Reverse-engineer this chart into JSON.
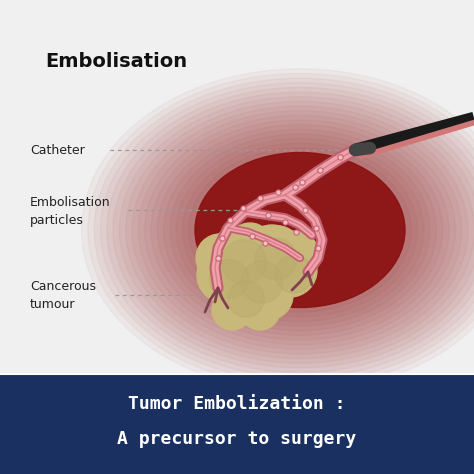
{
  "bg_color": "#f0f0f0",
  "title_text": "Embolisation",
  "title_fontsize": 13,
  "label_catheter": "Catheter",
  "label_embolisation": "Embolisation\nparticles",
  "label_cancerous": "Cancerous\ntumour",
  "dotted_line_color": "#999999",
  "blob_color": "#8B1010",
  "tumor_color": "#c8b87a",
  "tumor_color2": "#b8a86a",
  "vessel_fill": "#f0a0a8",
  "vessel_outline": "#c06070",
  "vessel_dark": "#804050",
  "catheter_color": "#2a2a2a",
  "catheter_pink": "#d07878",
  "banner_color": "#1a3060",
  "banner_text1": "Tumor Embolization :",
  "banner_text2": "A precursor to surgery",
  "banner_text_color": "#ffffff",
  "banner_fontsize": 13
}
